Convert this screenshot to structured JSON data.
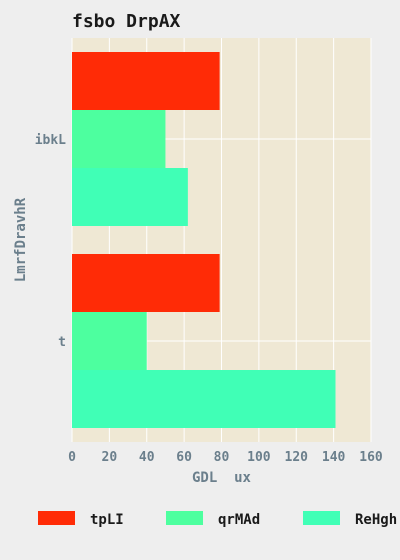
{
  "chart_data": {
    "type": "bar",
    "orientation": "horizontal",
    "title": "fsbo DrpAX",
    "xlabel": "GDL  ux",
    "ylabel": "LmrfDravhR",
    "categories": [
      "ibkL",
      "t"
    ],
    "xlim": [
      0,
      160
    ],
    "xticks": [
      0,
      20,
      40,
      60,
      80,
      100,
      120,
      140,
      160
    ],
    "grid": true,
    "legend_position": "bottom",
    "series": [
      {
        "name": "tpLI",
        "color": "#ff2b06",
        "values": [
          79,
          79
        ]
      },
      {
        "name": "qrMAd",
        "color": "#4dff9f",
        "values": [
          50,
          40
        ]
      },
      {
        "name": "ReHgh",
        "color": "#40ffb6",
        "values": [
          62,
          141
        ]
      }
    ]
  }
}
